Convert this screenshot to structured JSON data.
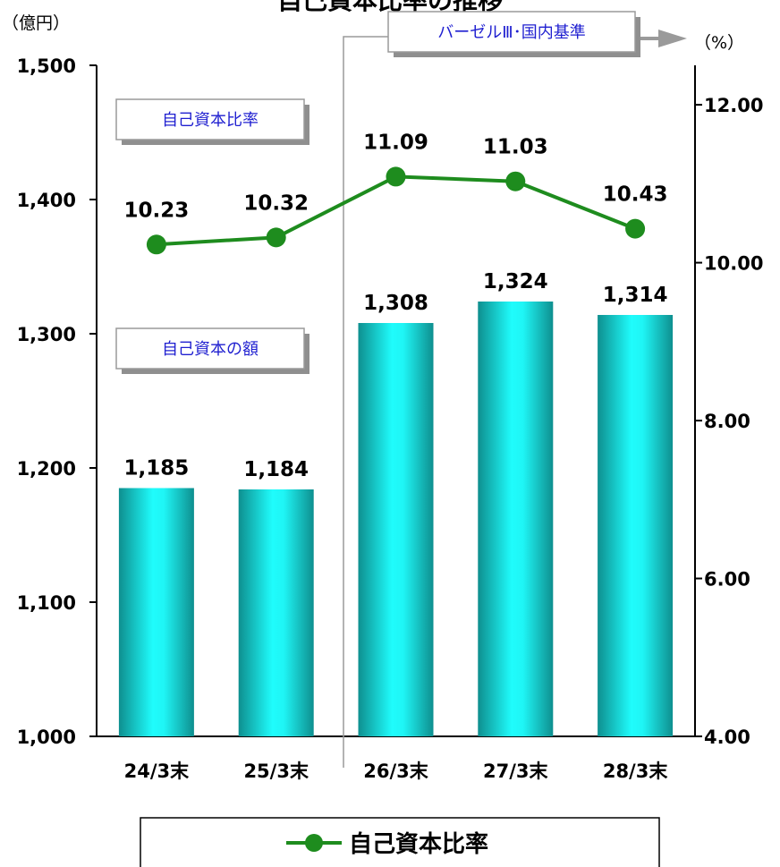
{
  "chart_data": {
    "type": "bar+line",
    "title": "自己資本比率の推移",
    "categories": [
      "24/3末",
      "25/3末",
      "26/3末",
      "27/3末",
      "28/3末"
    ],
    "bar_series": {
      "name": "自己資本の額",
      "values": [
        1185,
        1184,
        1308,
        1324,
        1314
      ],
      "labels": [
        "1,185",
        "1,184",
        "1,308",
        "1,324",
        "1,314"
      ],
      "axis": "left",
      "color": "#1fc8c8"
    },
    "line_series": {
      "name": "自己資本比率",
      "values": [
        10.23,
        10.32,
        11.09,
        11.03,
        10.43
      ],
      "labels": [
        "10.23",
        "10.32",
        "11.09",
        "11.03",
        "10.43"
      ],
      "axis": "right",
      "color": "#1e8c1e"
    },
    "y_left": {
      "unit": "（億円）",
      "range": [
        1000,
        1500
      ],
      "ticks": [
        1000,
        1100,
        1200,
        1300,
        1400,
        1500
      ],
      "tick_labels": [
        "1,000",
        "1,100",
        "1,200",
        "1,300",
        "1,400",
        "1,500"
      ]
    },
    "y_right": {
      "unit": "（%）",
      "range": [
        4,
        12.5
      ],
      "ticks": [
        4,
        6,
        8,
        10,
        12
      ],
      "tick_labels": [
        "4.00",
        "6.00",
        "8.00",
        "10.00",
        "12.00"
      ]
    },
    "annotations": {
      "ratio_box": "自己資本比率",
      "amount_box": "自己資本の額",
      "basel_box": "バーゼルⅢ･国内基準",
      "basel_start_category": "26/3末"
    },
    "legend": {
      "label": "自己資本比率",
      "position": "bottom"
    },
    "grid": false
  }
}
